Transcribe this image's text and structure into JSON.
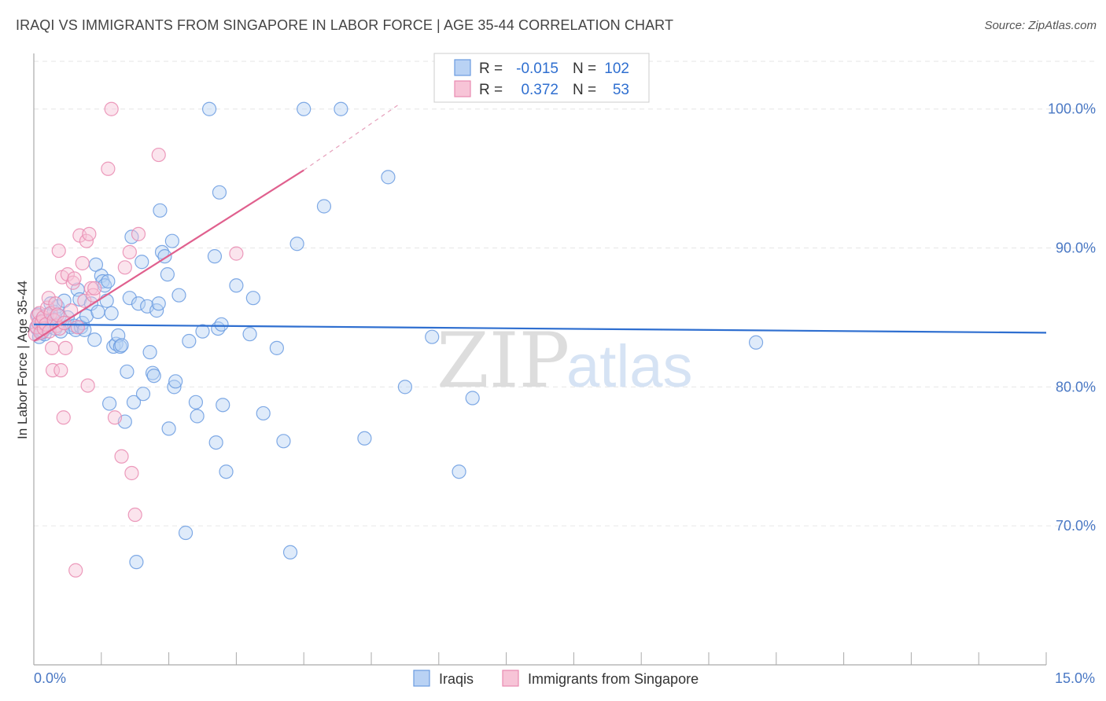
{
  "title": "IRAQI VS IMMIGRANTS FROM SINGAPORE IN LABOR FORCE | AGE 35-44 CORRELATION CHART",
  "source": "Source: ZipAtlas.com",
  "watermark": {
    "zip": "ZIP",
    "atlas": "atlas"
  },
  "legend_box": {
    "rows": [
      {
        "r_label": "R =",
        "r_value": "-0.015",
        "n_label": "N =",
        "n_value": "102"
      },
      {
        "r_label": "R =",
        "r_value": "0.372",
        "n_label": "N =",
        "n_value": "53"
      }
    ]
  },
  "chart_data": {
    "type": "scatter",
    "title": "IRAQI VS IMMIGRANTS FROM SINGAPORE IN LABOR FORCE | AGE 35-44 CORRELATION CHART",
    "xlabel": "",
    "ylabel": "In Labor Force | Age 35-44",
    "xlim": [
      0,
      15
    ],
    "ylim": [
      60,
      104
    ],
    "x_tick_labels": [
      "0.0%",
      "15.0%"
    ],
    "y_ticks": [
      70,
      80,
      90,
      100
    ],
    "y_tick_labels": [
      "70.0%",
      "80.0%",
      "90.0%",
      "100.0%"
    ],
    "grid": true,
    "legend_position": "bottom-center",
    "series": [
      {
        "name": "Iraqis",
        "color": "#6a9be0",
        "fill": "#b9d2f4",
        "r": -0.015,
        "n": 102,
        "trend": {
          "x": [
            0.0,
            15.0
          ],
          "y": [
            84.5,
            83.9
          ],
          "color": "#2f6fd0"
        },
        "points": [
          [
            0.05,
            84.2
          ],
          [
            0.08,
            83.6
          ],
          [
            0.1,
            84.5
          ],
          [
            0.12,
            83.9
          ],
          [
            0.14,
            84.8
          ],
          [
            0.16,
            83.8
          ],
          [
            0.18,
            84.6
          ],
          [
            0.2,
            85.2
          ],
          [
            0.22,
            84.3
          ],
          [
            0.25,
            86.0
          ],
          [
            0.28,
            84.9
          ],
          [
            0.3,
            85.4
          ],
          [
            0.32,
            84.2
          ],
          [
            0.35,
            85.8
          ],
          [
            0.38,
            85.1
          ],
          [
            0.4,
            84.0
          ],
          [
            0.45,
            86.2
          ],
          [
            0.5,
            85.0
          ],
          [
            0.55,
            84.3
          ],
          [
            0.6,
            84.4
          ],
          [
            0.62,
            84.1
          ],
          [
            0.65,
            87.0
          ],
          [
            0.68,
            86.3
          ],
          [
            0.7,
            84.3
          ],
          [
            0.72,
            84.6
          ],
          [
            0.75,
            84.1
          ],
          [
            0.78,
            85.1
          ],
          [
            0.85,
            86.0
          ],
          [
            0.9,
            83.4
          ],
          [
            0.92,
            88.8
          ],
          [
            0.95,
            85.4
          ],
          [
            1.0,
            88.0
          ],
          [
            1.02,
            87.6
          ],
          [
            1.05,
            87.3
          ],
          [
            1.08,
            86.2
          ],
          [
            1.1,
            87.6
          ],
          [
            1.12,
            78.8
          ],
          [
            1.15,
            85.3
          ],
          [
            1.18,
            82.9
          ],
          [
            1.22,
            83.1
          ],
          [
            1.25,
            83.7
          ],
          [
            1.28,
            82.9
          ],
          [
            1.3,
            83.0
          ],
          [
            1.35,
            77.5
          ],
          [
            1.38,
            81.1
          ],
          [
            1.42,
            86.4
          ],
          [
            1.45,
            90.8
          ],
          [
            1.48,
            78.9
          ],
          [
            1.52,
            67.4
          ],
          [
            1.55,
            86.0
          ],
          [
            1.6,
            89.0
          ],
          [
            1.62,
            79.5
          ],
          [
            1.68,
            85.8
          ],
          [
            1.72,
            82.5
          ],
          [
            1.76,
            81.0
          ],
          [
            1.78,
            80.8
          ],
          [
            1.82,
            85.5
          ],
          [
            1.85,
            86.0
          ],
          [
            1.87,
            92.7
          ],
          [
            1.9,
            89.7
          ],
          [
            1.94,
            89.4
          ],
          [
            1.98,
            88.1
          ],
          [
            2.0,
            77.0
          ],
          [
            2.05,
            90.5
          ],
          [
            2.08,
            80.0
          ],
          [
            2.1,
            80.4
          ],
          [
            2.15,
            86.6
          ],
          [
            2.25,
            69.5
          ],
          [
            2.3,
            83.3
          ],
          [
            2.4,
            78.9
          ],
          [
            2.42,
            77.9
          ],
          [
            2.5,
            84.0
          ],
          [
            2.6,
            100.0
          ],
          [
            2.68,
            89.4
          ],
          [
            2.7,
            76.0
          ],
          [
            2.73,
            84.2
          ],
          [
            2.75,
            94.0
          ],
          [
            2.78,
            84.5
          ],
          [
            2.8,
            78.7
          ],
          [
            2.85,
            73.9
          ],
          [
            3.0,
            87.3
          ],
          [
            3.2,
            83.8
          ],
          [
            3.25,
            86.4
          ],
          [
            3.4,
            78.1
          ],
          [
            3.6,
            82.8
          ],
          [
            3.7,
            76.1
          ],
          [
            3.8,
            68.1
          ],
          [
            3.9,
            90.3
          ],
          [
            4.0,
            100.0
          ],
          [
            4.3,
            93.0
          ],
          [
            4.55,
            100.0
          ],
          [
            4.9,
            76.3
          ],
          [
            5.25,
            95.1
          ],
          [
            5.5,
            80.0
          ],
          [
            5.9,
            83.6
          ],
          [
            6.3,
            73.9
          ],
          [
            6.5,
            79.2
          ],
          [
            10.7,
            83.2
          ],
          [
            0.04,
            84.3
          ],
          [
            0.06,
            85.2
          ],
          [
            0.09,
            84.7
          ],
          [
            0.13,
            84.0
          ]
        ]
      },
      {
        "name": "Immigrants from Singapore",
        "color": "#e98ab0",
        "fill": "#f7c4d7",
        "r": 0.372,
        "n": 53,
        "trend": {
          "x": [
            0.0,
            4.0
          ],
          "y": [
            83.3,
            95.6
          ],
          "color": "#e0608e"
        },
        "trend_dashed": {
          "x": [
            4.0,
            5.4
          ],
          "y": [
            95.6,
            100.3
          ],
          "color": "#e6a0bb"
        },
        "points": [
          [
            0.02,
            83.8
          ],
          [
            0.04,
            84.3
          ],
          [
            0.05,
            85.1
          ],
          [
            0.07,
            84.6
          ],
          [
            0.08,
            85.3
          ],
          [
            0.1,
            83.9
          ],
          [
            0.12,
            84.7
          ],
          [
            0.14,
            85.0
          ],
          [
            0.15,
            84.2
          ],
          [
            0.18,
            84.5
          ],
          [
            0.2,
            85.7
          ],
          [
            0.22,
            86.4
          ],
          [
            0.23,
            84.0
          ],
          [
            0.25,
            85.3
          ],
          [
            0.27,
            82.8
          ],
          [
            0.28,
            81.2
          ],
          [
            0.3,
            84.8
          ],
          [
            0.32,
            86.0
          ],
          [
            0.34,
            84.4
          ],
          [
            0.35,
            85.2
          ],
          [
            0.37,
            89.8
          ],
          [
            0.38,
            84.2
          ],
          [
            0.4,
            81.2
          ],
          [
            0.42,
            87.9
          ],
          [
            0.44,
            77.8
          ],
          [
            0.45,
            84.6
          ],
          [
            0.47,
            82.8
          ],
          [
            0.5,
            88.1
          ],
          [
            0.55,
            85.5
          ],
          [
            0.58,
            87.5
          ],
          [
            0.6,
            87.8
          ],
          [
            0.62,
            66.8
          ],
          [
            0.65,
            84.3
          ],
          [
            0.68,
            90.9
          ],
          [
            0.72,
            88.9
          ],
          [
            0.75,
            86.2
          ],
          [
            0.78,
            90.5
          ],
          [
            0.8,
            80.1
          ],
          [
            0.82,
            91.0
          ],
          [
            0.85,
            87.1
          ],
          [
            0.88,
            86.6
          ],
          [
            0.9,
            87.1
          ],
          [
            1.1,
            95.7
          ],
          [
            1.15,
            100.0
          ],
          [
            1.2,
            77.8
          ],
          [
            1.3,
            75.0
          ],
          [
            1.35,
            88.6
          ],
          [
            1.42,
            89.7
          ],
          [
            1.45,
            73.8
          ],
          [
            1.5,
            70.8
          ],
          [
            1.55,
            91.0
          ],
          [
            1.85,
            96.7
          ],
          [
            3.0,
            89.6
          ]
        ]
      }
    ]
  }
}
